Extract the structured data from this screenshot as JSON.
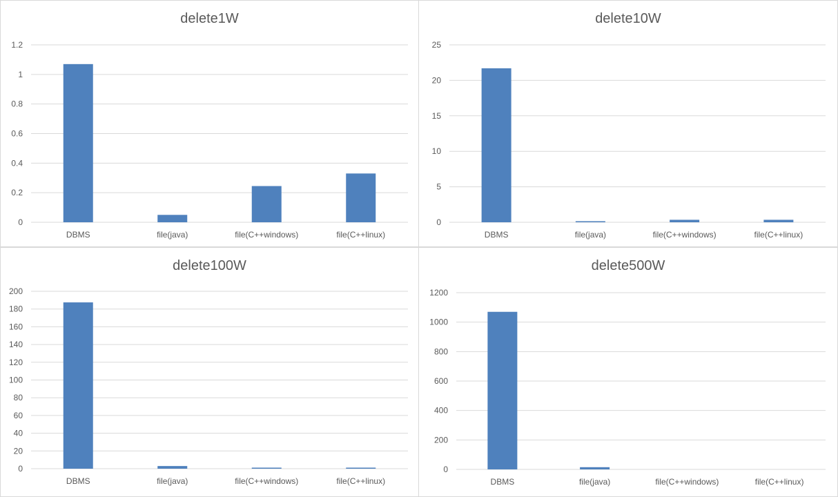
{
  "colors": {
    "bar": "#4f81bd",
    "grid": "#d9d9d9",
    "text": "#595959",
    "axis": "#d9d9d9"
  },
  "chart_data": [
    {
      "type": "bar",
      "title": "delete1W",
      "categories": [
        "DBMS",
        "file(java)",
        "file(C++windows)",
        "file(C++linux)"
      ],
      "values": [
        1.07,
        0.05,
        0.245,
        0.33
      ],
      "yticks": [
        "0",
        "0.2",
        "0.4",
        "0.6",
        "0.8",
        "1",
        "1.2"
      ],
      "ylim": [
        0,
        1.2
      ],
      "grid": true,
      "legend": "none"
    },
    {
      "type": "bar",
      "title": "delete10W",
      "categories": [
        "DBMS",
        "file(java)",
        "file(C++windows)",
        "file(C++linux)"
      ],
      "values": [
        21.7,
        0.15,
        0.35,
        0.35
      ],
      "yticks": [
        "0",
        "5",
        "10",
        "15",
        "20",
        "25"
      ],
      "ylim": [
        0,
        25
      ],
      "grid": true,
      "legend": "none"
    },
    {
      "type": "bar",
      "title": "delete100W",
      "categories": [
        "DBMS",
        "file(java)",
        "file(C++windows)",
        "file(C++linux)"
      ],
      "values": [
        187.5,
        3,
        1.2,
        1.2
      ],
      "yticks": [
        "0",
        "20",
        "40",
        "60",
        "80",
        "100",
        "120",
        "140",
        "160",
        "180",
        "200"
      ],
      "ylim": [
        0,
        200
      ],
      "grid": true,
      "legend": "none"
    },
    {
      "type": "bar",
      "title": "delete500W",
      "categories": [
        "DBMS",
        "file(java)",
        "file(C++windows)",
        "file(C++linux)"
      ],
      "values": [
        1070,
        15,
        0,
        0
      ],
      "yticks": [
        "0",
        "200",
        "400",
        "600",
        "800",
        "1000",
        "1200"
      ],
      "ylim": [
        0,
        1200
      ],
      "grid": true,
      "legend": "none"
    }
  ]
}
